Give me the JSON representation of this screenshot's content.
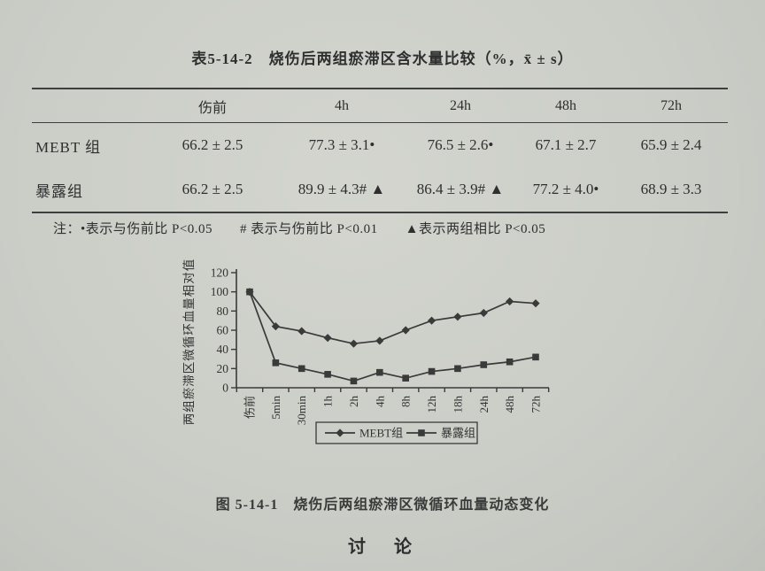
{
  "theme": {
    "ink": "#3a3a3a",
    "paper": "#cbcec7",
    "rule": "#3e3e3e"
  },
  "table": {
    "title": "表5-14-2　烧伤后两组瘀滞区含水量比较（%，x̄ ± s）",
    "header": [
      "",
      "伤前",
      "4h",
      "24h",
      "48h",
      "72h"
    ],
    "rows": [
      {
        "label": "MEBT 组",
        "values": [
          "66.2 ± 2.5",
          "77.3 ± 3.1•",
          "76.5 ± 2.6•",
          "67.1 ± 2.7",
          "65.9 ± 2.4"
        ]
      },
      {
        "label": "暴露组",
        "values": [
          "66.2 ± 2.5",
          "89.9 ± 4.3# ▲",
          "86.4 ± 3.9# ▲",
          "77.2 ± 4.0•",
          "68.9 ± 3.3"
        ]
      }
    ],
    "note": "注：•表示与伤前比 P<0.05　　# 表示与伤前比 P<0.01　　▲表示两组相比 P<0.05"
  },
  "chart_data": {
    "type": "line",
    "categories": [
      "伤前",
      "5min",
      "30min",
      "1h",
      "2h",
      "4h",
      "8h",
      "12h",
      "18h",
      "24h",
      "48h",
      "72h"
    ],
    "series": [
      {
        "name": "MEBT组",
        "marker": "diamond",
        "values": [
          100,
          64,
          59,
          52,
          46,
          49,
          60,
          70,
          74,
          78,
          90,
          88
        ]
      },
      {
        "name": "暴露组",
        "marker": "square",
        "values": [
          100,
          26,
          20,
          14,
          7,
          16,
          10,
          17,
          20,
          24,
          27,
          32
        ]
      }
    ],
    "title": "",
    "xlabel": "",
    "ylabel": "两组瘀滞区微循环血量相对值",
    "ylim": [
      0,
      120
    ],
    "ytick_step": 20,
    "grid": false,
    "legend_position": "bottom"
  },
  "figure": {
    "caption": "图  5-14-1　烧伤后两组瘀滞区微循环血量动态变化"
  },
  "section": {
    "heading": "讨　论"
  }
}
